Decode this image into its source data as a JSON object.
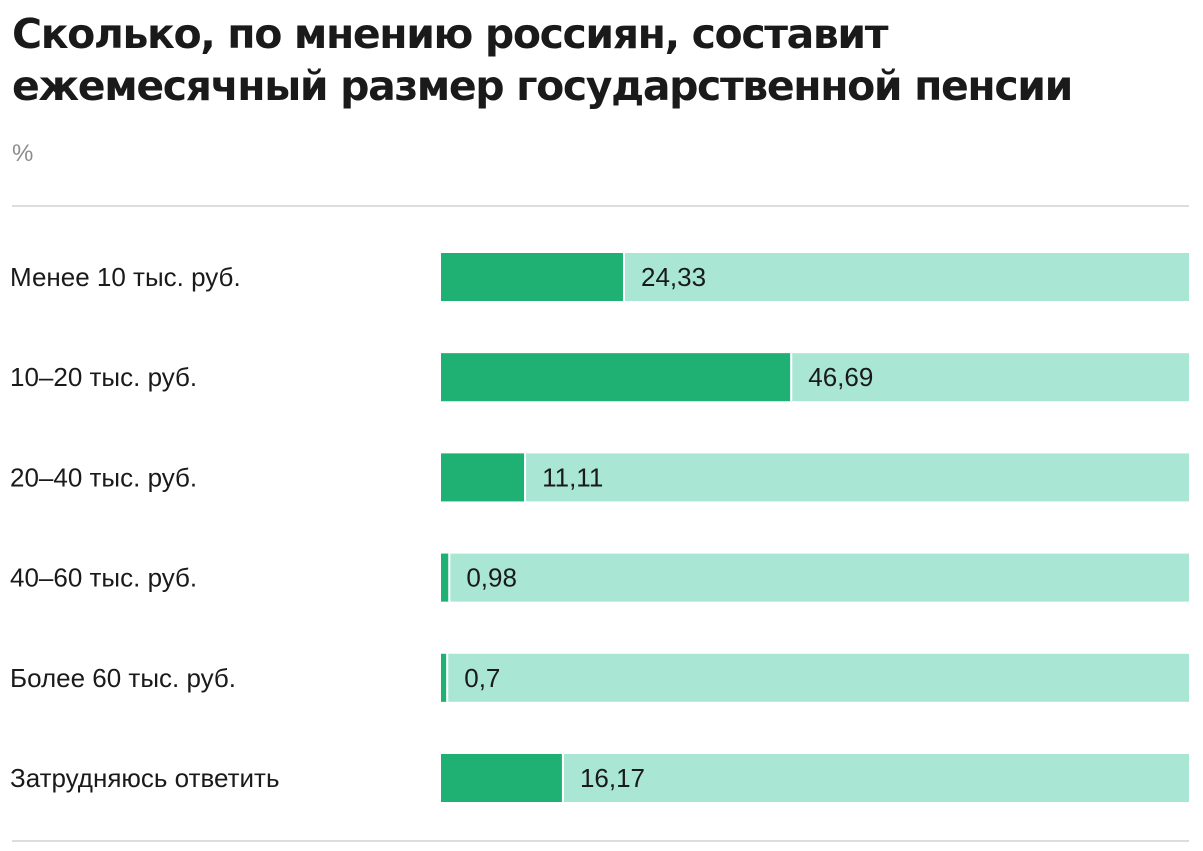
{
  "chart_data": {
    "type": "bar",
    "orientation": "horizontal",
    "title": "Сколько, по мнению россиян, составит ежемесячный размер государственной пенсии",
    "unit": "%",
    "categories": [
      "Менее 10 тыс. руб.",
      "10–20 тыс. руб.",
      "20–40 тыс. руб.",
      "40–60 тыс. руб.",
      "Более 60 тыс. руб.",
      "Затрудняюсь ответить"
    ],
    "values": [
      24.33,
      46.69,
      11.11,
      0.98,
      0.7,
      16.17
    ],
    "value_labels": [
      "24,33",
      "46,69",
      "11,11",
      "0,98",
      "0,7",
      "16,17"
    ],
    "xlim": [
      0,
      100
    ],
    "grid": false,
    "legend": "none",
    "colors": {
      "bar": "#1fb074",
      "track": "#a9e6d4",
      "rule": "#dddddd",
      "unit_text": "#8c8c8c",
      "text": "#1a1a1a"
    }
  }
}
